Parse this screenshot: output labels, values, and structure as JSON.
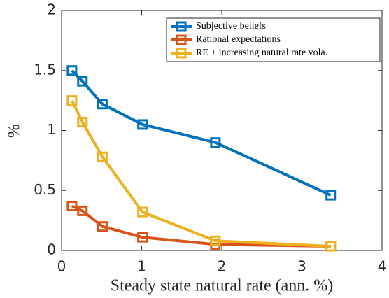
{
  "chart_data": {
    "type": "line",
    "xlabel": "Steady state natural rate (ann. %)",
    "ylabel": "%",
    "x": [
      0.13,
      0.26,
      0.51,
      1.01,
      1.92,
      3.36
    ],
    "series": [
      {
        "name": "Subjective beliefs",
        "color": "#0072bd",
        "values": [
          1.5,
          1.41,
          1.22,
          1.05,
          0.9,
          0.46
        ]
      },
      {
        "name": "Rational expectations",
        "color": "#d95319",
        "values": [
          0.37,
          0.33,
          0.2,
          0.11,
          0.05,
          0.035
        ]
      },
      {
        "name": "RE + increasing natural rate vola.",
        "color": "#edb120",
        "values": [
          1.25,
          1.07,
          0.78,
          0.32,
          0.08,
          0.035
        ]
      }
    ],
    "xlim": [
      0,
      4
    ],
    "ylim": [
      0,
      2
    ],
    "xticks": [
      0,
      1,
      2,
      3,
      4
    ],
    "yticks": [
      0,
      0.5,
      1,
      1.5,
      2
    ],
    "legend": "northeast"
  }
}
